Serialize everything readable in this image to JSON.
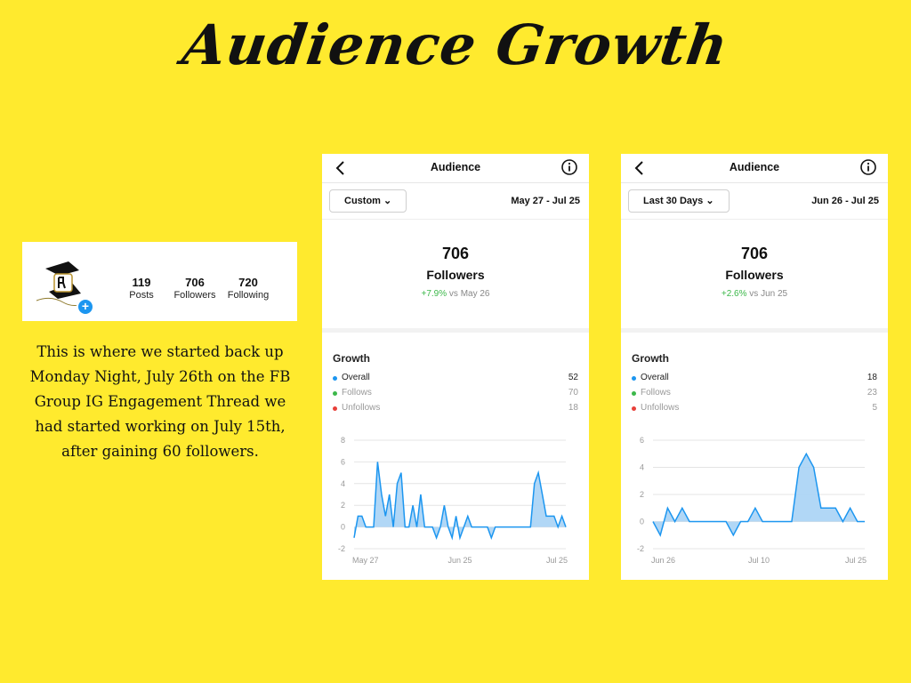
{
  "page_title": "Audience Growth",
  "profile": {
    "stats": [
      {
        "num": "119",
        "label": "Posts"
      },
      {
        "num": "706",
        "label": "Followers"
      },
      {
        "num": "720",
        "label": "Following"
      }
    ]
  },
  "caption": "This is where we started back up Monday Night, July 26th on the FB Group IG Engagement Thread we had started working on July 15th, after gaining 60 followers.",
  "panels": [
    {
      "title": "Audience",
      "filter": "Custom",
      "range": "May 27 - Jul 25",
      "followers_count": "706",
      "followers_label": "Followers",
      "change": "+7.9%",
      "change_vs": "vs May 26",
      "growth_title": "Growth",
      "legend": [
        {
          "name": "Overall",
          "value": "52",
          "color": "#1c96f0",
          "text": "#222"
        },
        {
          "name": "Follows",
          "value": "70",
          "color": "#3cb84a",
          "text": "#999"
        },
        {
          "name": "Unfollows",
          "value": "18",
          "color": "#e8403a",
          "text": "#999"
        }
      ],
      "chart_data": {
        "type": "area",
        "ylim": [
          -2,
          8
        ],
        "yticks": [
          "8",
          "6",
          "4",
          "2",
          "0",
          "-2"
        ],
        "xticks": [
          "May 27",
          "Jun 25",
          "Jul 25"
        ],
        "values": [
          -1,
          1,
          1,
          0,
          0,
          0,
          6,
          3,
          1,
          3,
          0,
          4,
          5,
          0,
          0,
          2,
          0,
          3,
          0,
          0,
          0,
          -1,
          0,
          2,
          0,
          -1,
          1,
          -1,
          0,
          1,
          0,
          0,
          0,
          0,
          0,
          -1,
          0,
          0,
          0,
          0,
          0,
          0,
          0,
          0,
          0,
          0,
          4,
          5,
          3,
          1,
          1,
          1,
          0,
          1,
          0
        ],
        "series_color": "#1c96f0"
      }
    },
    {
      "title": "Audience",
      "filter": "Last 30 Days",
      "range": "Jun 26 - Jul 25",
      "followers_count": "706",
      "followers_label": "Followers",
      "change": "+2.6%",
      "change_vs": "vs Jun 25",
      "growth_title": "Growth",
      "legend": [
        {
          "name": "Overall",
          "value": "18",
          "color": "#1c96f0",
          "text": "#222"
        },
        {
          "name": "Follows",
          "value": "23",
          "color": "#3cb84a",
          "text": "#999"
        },
        {
          "name": "Unfollows",
          "value": "5",
          "color": "#e8403a",
          "text": "#999"
        }
      ],
      "chart_data": {
        "type": "area",
        "ylim": [
          -2,
          6
        ],
        "yticks": [
          "6",
          "4",
          "2",
          "0",
          "-2"
        ],
        "xticks": [
          "Jun 26",
          "Jul 10",
          "Jul 25"
        ],
        "values": [
          0,
          -1,
          1,
          0,
          1,
          0,
          0,
          0,
          0,
          0,
          0,
          -1,
          0,
          0,
          1,
          0,
          0,
          0,
          0,
          0,
          4,
          5,
          4,
          1,
          1,
          1,
          0,
          1,
          0,
          0
        ],
        "series_color": "#1c96f0"
      }
    }
  ]
}
